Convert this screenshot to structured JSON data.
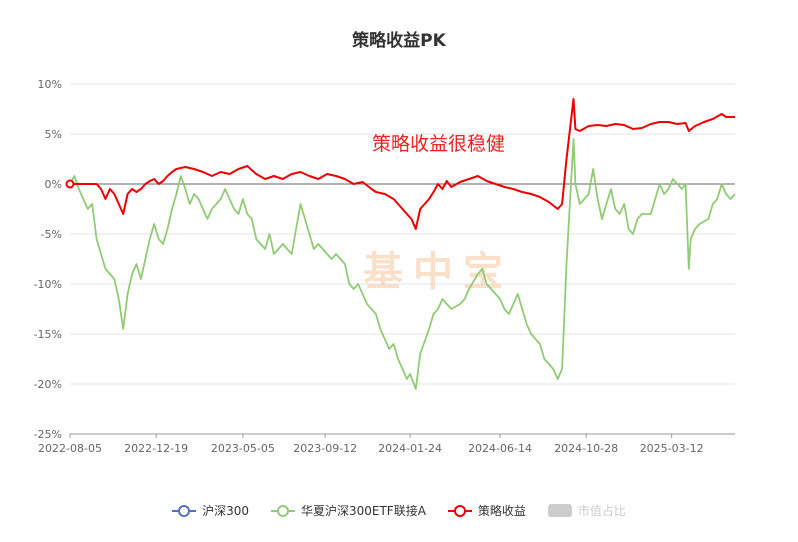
{
  "chart_data": {
    "type": "line",
    "title": "策略收益PK",
    "annotation": "策略收益很稳健",
    "watermark": "基中宝",
    "y_ticks": [
      "10%",
      "5%",
      "0%",
      "-5%",
      "-10%",
      "-15%",
      "-20%",
      "-25%"
    ],
    "x_ticks": [
      "2022-08-05",
      "2022-12-19",
      "2023-05-05",
      "2023-09-12",
      "2024-01-24",
      "2024-06-14",
      "2024-10-28",
      "2025-03-12"
    ],
    "ylim": [
      -25,
      10
    ],
    "xlim": [
      "2022-08-05",
      "2025-06-20"
    ],
    "grid": true,
    "legend_position": "bottom",
    "colors": {
      "hs300": "#5470c6",
      "etf": "#91cc75",
      "strategy": "#ee0000",
      "market_share": "#cccccc"
    },
    "series": [
      {
        "name": "华夏沪深300ETF联接A",
        "color": "#91cc75",
        "points": [
          [
            "2022-08-05",
            0.0
          ],
          [
            "2022-08-12",
            0.8
          ],
          [
            "2022-08-19",
            -0.5
          ],
          [
            "2022-08-26",
            -1.5
          ],
          [
            "2022-09-02",
            -2.5
          ],
          [
            "2022-09-09",
            -2.0
          ],
          [
            "2022-09-16",
            -5.5
          ],
          [
            "2022-09-23",
            -7.0
          ],
          [
            "2022-09-30",
            -8.5
          ],
          [
            "2022-10-14",
            -9.5
          ],
          [
            "2022-10-21",
            -11.5
          ],
          [
            "2022-10-28",
            -14.5
          ],
          [
            "2022-11-04",
            -11.0
          ],
          [
            "2022-11-11",
            -9.0
          ],
          [
            "2022-11-18",
            -8.0
          ],
          [
            "2022-11-25",
            -9.5
          ],
          [
            "2022-12-02",
            -7.5
          ],
          [
            "2022-12-09",
            -5.5
          ],
          [
            "2022-12-16",
            -4.0
          ],
          [
            "2022-12-23",
            -5.5
          ],
          [
            "2022-12-30",
            -6.0
          ],
          [
            "2023-01-06",
            -4.5
          ],
          [
            "2023-01-13",
            -2.5
          ],
          [
            "2023-01-20",
            -1.0
          ],
          [
            "2023-01-27",
            0.8
          ],
          [
            "2023-02-03",
            -0.5
          ],
          [
            "2023-02-10",
            -2.0
          ],
          [
            "2023-02-17",
            -1.0
          ],
          [
            "2023-02-24",
            -1.5
          ],
          [
            "2023-03-03",
            -2.5
          ],
          [
            "2023-03-10",
            -3.5
          ],
          [
            "2023-03-17",
            -2.5
          ],
          [
            "2023-03-24",
            -2.0
          ],
          [
            "2023-03-31",
            -1.5
          ],
          [
            "2023-04-07",
            -0.5
          ],
          [
            "2023-04-14",
            -1.5
          ],
          [
            "2023-04-21",
            -2.5
          ],
          [
            "2023-04-28",
            -3.0
          ],
          [
            "2023-05-05",
            -1.5
          ],
          [
            "2023-05-12",
            -3.0
          ],
          [
            "2023-05-19",
            -3.5
          ],
          [
            "2023-05-26",
            -5.5
          ],
          [
            "2023-06-02",
            -6.0
          ],
          [
            "2023-06-09",
            -6.5
          ],
          [
            "2023-06-16",
            -5.0
          ],
          [
            "2023-06-23",
            -7.0
          ],
          [
            "2023-06-30",
            -6.5
          ],
          [
            "2023-07-07",
            -6.0
          ],
          [
            "2023-07-14",
            -6.5
          ],
          [
            "2023-07-21",
            -7.0
          ],
          [
            "2023-07-28",
            -4.5
          ],
          [
            "2023-08-04",
            -2.0
          ],
          [
            "2023-08-11",
            -3.5
          ],
          [
            "2023-08-18",
            -5.0
          ],
          [
            "2023-08-25",
            -6.5
          ],
          [
            "2023-09-01",
            -6.0
          ],
          [
            "2023-09-08",
            -6.5
          ],
          [
            "2023-09-15",
            -7.0
          ],
          [
            "2023-09-22",
            -7.5
          ],
          [
            "2023-09-29",
            -7.0
          ],
          [
            "2023-10-13",
            -8.0
          ],
          [
            "2023-10-20",
            -10.0
          ],
          [
            "2023-10-27",
            -10.5
          ],
          [
            "2023-11-03",
            -10.0
          ],
          [
            "2023-11-10",
            -11.0
          ],
          [
            "2023-11-17",
            -12.0
          ],
          [
            "2023-11-24",
            -12.5
          ],
          [
            "2023-12-01",
            -13.0
          ],
          [
            "2023-12-08",
            -14.5
          ],
          [
            "2023-12-15",
            -15.5
          ],
          [
            "2023-12-22",
            -16.5
          ],
          [
            "2023-12-29",
            -16.0
          ],
          [
            "2024-01-05",
            -17.5
          ],
          [
            "2024-01-12",
            -18.5
          ],
          [
            "2024-01-19",
            -19.5
          ],
          [
            "2024-01-24",
            -19.0
          ],
          [
            "2024-02-02",
            -20.5
          ],
          [
            "2024-02-09",
            -17.0
          ],
          [
            "2024-02-23",
            -14.5
          ],
          [
            "2024-03-01",
            -13.0
          ],
          [
            "2024-03-08",
            -12.5
          ],
          [
            "2024-03-15",
            -11.5
          ],
          [
            "2024-03-22",
            -12.0
          ],
          [
            "2024-03-29",
            -12.5
          ],
          [
            "2024-04-12",
            -12.0
          ],
          [
            "2024-04-19",
            -11.5
          ],
          [
            "2024-04-26",
            -10.5
          ],
          [
            "2024-05-10",
            -9.0
          ],
          [
            "2024-05-17",
            -8.5
          ],
          [
            "2024-05-24",
            -10.0
          ],
          [
            "2024-05-31",
            -10.5
          ],
          [
            "2024-06-07",
            -11.0
          ],
          [
            "2024-06-14",
            -11.5
          ],
          [
            "2024-06-21",
            -12.5
          ],
          [
            "2024-06-28",
            -13.0
          ],
          [
            "2024-07-05",
            -12.0
          ],
          [
            "2024-07-12",
            -11.0
          ],
          [
            "2024-07-19",
            -12.5
          ],
          [
            "2024-07-26",
            -14.0
          ],
          [
            "2024-08-02",
            -15.0
          ],
          [
            "2024-08-09",
            -15.5
          ],
          [
            "2024-08-16",
            -16.0
          ],
          [
            "2024-08-23",
            -17.5
          ],
          [
            "2024-08-30",
            -18.0
          ],
          [
            "2024-09-06",
            -18.5
          ],
          [
            "2024-09-13",
            -19.5
          ],
          [
            "2024-09-20",
            -18.5
          ],
          [
            "2024-09-27",
            -8.0
          ],
          [
            "2024-10-08",
            4.5
          ],
          [
            "2024-10-11",
            0.0
          ],
          [
            "2024-10-18",
            -2.0
          ],
          [
            "2024-10-25",
            -1.5
          ],
          [
            "2024-11-01",
            -1.0
          ],
          [
            "2024-11-08",
            1.5
          ],
          [
            "2024-11-15",
            -1.5
          ],
          [
            "2024-11-22",
            -3.5
          ],
          [
            "2024-11-29",
            -2.0
          ],
          [
            "2024-12-06",
            -0.5
          ],
          [
            "2024-12-13",
            -2.5
          ],
          [
            "2024-12-20",
            -3.0
          ],
          [
            "2024-12-27",
            -2.0
          ],
          [
            "2025-01-03",
            -4.5
          ],
          [
            "2025-01-10",
            -5.0
          ],
          [
            "2025-01-17",
            -3.5
          ],
          [
            "2025-01-24",
            -3.0
          ],
          [
            "2025-02-07",
            -3.0
          ],
          [
            "2025-02-14",
            -1.5
          ],
          [
            "2025-02-21",
            0.0
          ],
          [
            "2025-02-28",
            -1.0
          ],
          [
            "2025-03-07",
            -0.5
          ],
          [
            "2025-03-14",
            0.5
          ],
          [
            "2025-03-21",
            0.0
          ],
          [
            "2025-03-28",
            -0.5
          ],
          [
            "2025-04-03",
            0.0
          ],
          [
            "2025-04-08",
            -8.5
          ],
          [
            "2025-04-11",
            -5.5
          ],
          [
            "2025-04-18",
            -4.5
          ],
          [
            "2025-04-25",
            -4.0
          ],
          [
            "2025-05-09",
            -3.5
          ],
          [
            "2025-05-16",
            -2.0
          ],
          [
            "2025-05-23",
            -1.5
          ],
          [
            "2025-05-30",
            0.0
          ],
          [
            "2025-06-06",
            -1.0
          ],
          [
            "2025-06-13",
            -1.5
          ],
          [
            "2025-06-20",
            -1.0
          ]
        ]
      },
      {
        "name": "策略收益",
        "color": "#ee0000",
        "points": [
          [
            "2022-08-05",
            0.0
          ],
          [
            "2022-08-19",
            0.0
          ],
          [
            "2022-09-02",
            0.0
          ],
          [
            "2022-09-16",
            0.0
          ],
          [
            "2022-09-23",
            -0.5
          ],
          [
            "2022-09-30",
            -1.5
          ],
          [
            "2022-10-07",
            -0.5
          ],
          [
            "2022-10-14",
            -1.0
          ],
          [
            "2022-10-21",
            -2.0
          ],
          [
            "2022-10-28",
            -3.0
          ],
          [
            "2022-11-04",
            -1.0
          ],
          [
            "2022-11-11",
            -0.5
          ],
          [
            "2022-11-18",
            -0.8
          ],
          [
            "2022-11-25",
            -0.5
          ],
          [
            "2022-12-02",
            0.0
          ],
          [
            "2022-12-09",
            0.3
          ],
          [
            "2022-12-16",
            0.5
          ],
          [
            "2022-12-23",
            0.0
          ],
          [
            "2022-12-30",
            0.3
          ],
          [
            "2023-01-06",
            0.8
          ],
          [
            "2023-01-13",
            1.2
          ],
          [
            "2023-01-20",
            1.5
          ],
          [
            "2023-02-03",
            1.7
          ],
          [
            "2023-02-17",
            1.5
          ],
          [
            "2023-03-03",
            1.2
          ],
          [
            "2023-03-17",
            0.8
          ],
          [
            "2023-03-31",
            1.2
          ],
          [
            "2023-04-14",
            1.0
          ],
          [
            "2023-04-28",
            1.5
          ],
          [
            "2023-05-12",
            1.8
          ],
          [
            "2023-05-26",
            1.0
          ],
          [
            "2023-06-09",
            0.5
          ],
          [
            "2023-06-23",
            0.8
          ],
          [
            "2023-07-07",
            0.5
          ],
          [
            "2023-07-21",
            1.0
          ],
          [
            "2023-08-04",
            1.2
          ],
          [
            "2023-08-18",
            0.8
          ],
          [
            "2023-09-01",
            0.5
          ],
          [
            "2023-09-15",
            1.0
          ],
          [
            "2023-09-29",
            0.8
          ],
          [
            "2023-10-13",
            0.5
          ],
          [
            "2023-10-27",
            0.0
          ],
          [
            "2023-11-10",
            0.2
          ],
          [
            "2023-11-24",
            -0.5
          ],
          [
            "2023-12-01",
            -0.8
          ],
          [
            "2023-12-15",
            -1.0
          ],
          [
            "2023-12-29",
            -1.5
          ],
          [
            "2024-01-05",
            -2.0
          ],
          [
            "2024-01-12",
            -2.5
          ],
          [
            "2024-01-19",
            -3.0
          ],
          [
            "2024-01-26",
            -3.5
          ],
          [
            "2024-02-02",
            -4.5
          ],
          [
            "2024-02-09",
            -2.5
          ],
          [
            "2024-02-23",
            -1.5
          ],
          [
            "2024-03-01",
            -0.8
          ],
          [
            "2024-03-08",
            0.0
          ],
          [
            "2024-03-15",
            -0.5
          ],
          [
            "2024-03-22",
            0.3
          ],
          [
            "2024-03-29",
            -0.3
          ],
          [
            "2024-04-12",
            0.2
          ],
          [
            "2024-04-26",
            0.5
          ],
          [
            "2024-05-10",
            0.8
          ],
          [
            "2024-05-24",
            0.3
          ],
          [
            "2024-06-07",
            0.0
          ],
          [
            "2024-06-21",
            -0.3
          ],
          [
            "2024-07-05",
            -0.5
          ],
          [
            "2024-07-19",
            -0.8
          ],
          [
            "2024-08-02",
            -1.0
          ],
          [
            "2024-08-16",
            -1.3
          ],
          [
            "2024-08-30",
            -1.8
          ],
          [
            "2024-09-13",
            -2.5
          ],
          [
            "2024-09-20",
            -2.0
          ],
          [
            "2024-09-27",
            2.5
          ],
          [
            "2024-10-08",
            8.5
          ],
          [
            "2024-10-11",
            5.5
          ],
          [
            "2024-10-18",
            5.3
          ],
          [
            "2024-11-01",
            5.8
          ],
          [
            "2024-11-15",
            5.9
          ],
          [
            "2024-11-29",
            5.8
          ],
          [
            "2024-12-13",
            6.0
          ],
          [
            "2024-12-27",
            5.9
          ],
          [
            "2025-01-10",
            5.5
          ],
          [
            "2025-01-24",
            5.6
          ],
          [
            "2025-02-07",
            6.0
          ],
          [
            "2025-02-21",
            6.2
          ],
          [
            "2025-03-07",
            6.2
          ],
          [
            "2025-03-21",
            6.0
          ],
          [
            "2025-04-03",
            6.1
          ],
          [
            "2025-04-08",
            5.3
          ],
          [
            "2025-04-18",
            5.8
          ],
          [
            "2025-05-02",
            6.2
          ],
          [
            "2025-05-16",
            6.5
          ],
          [
            "2025-05-30",
            7.0
          ],
          [
            "2025-06-06",
            6.7
          ],
          [
            "2025-06-20",
            6.7
          ]
        ]
      }
    ],
    "legend": [
      {
        "label": "沪深300",
        "color": "#5470c6",
        "kind": "line"
      },
      {
        "label": "华夏沪深300ETF联接A",
        "color": "#91cc75",
        "kind": "line"
      },
      {
        "label": "策略收益",
        "color": "#ee0000",
        "kind": "line"
      },
      {
        "label": "市值占比",
        "color": "#cccccc",
        "kind": "rect",
        "disabled": true
      }
    ]
  }
}
